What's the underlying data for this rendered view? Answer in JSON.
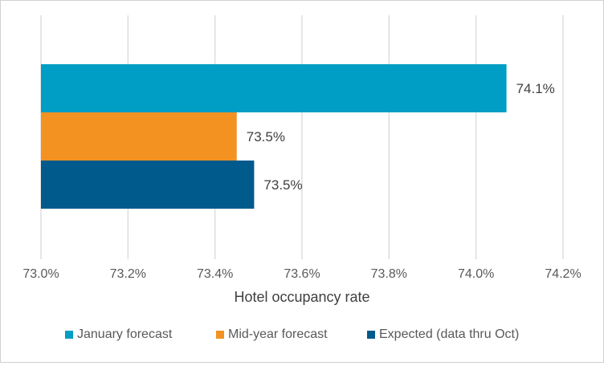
{
  "chart_data": {
    "type": "bar",
    "orientation": "horizontal",
    "title": "",
    "xlabel": "Hotel occupancy rate",
    "ylabel": "",
    "xlim": [
      73.0,
      74.2
    ],
    "x_ticks": [
      73.0,
      73.2,
      73.4,
      73.6,
      73.8,
      74.0,
      74.2
    ],
    "x_tick_labels": [
      "73.0%",
      "73.2%",
      "73.4%",
      "73.6%",
      "73.8%",
      "74.0%",
      "74.2%"
    ],
    "grid": "vertical",
    "legend_position": "bottom",
    "series": [
      {
        "name": "January forecast",
        "value": 74.07,
        "label": "74.1%",
        "color": "#009DC4"
      },
      {
        "name": "Mid-year forecast",
        "value": 73.45,
        "label": "73.5%",
        "color": "#F39221"
      },
      {
        "name": "Expected (data thru Oct)",
        "value": 73.49,
        "label": "73.5%",
        "color": "#005A8C"
      }
    ]
  }
}
